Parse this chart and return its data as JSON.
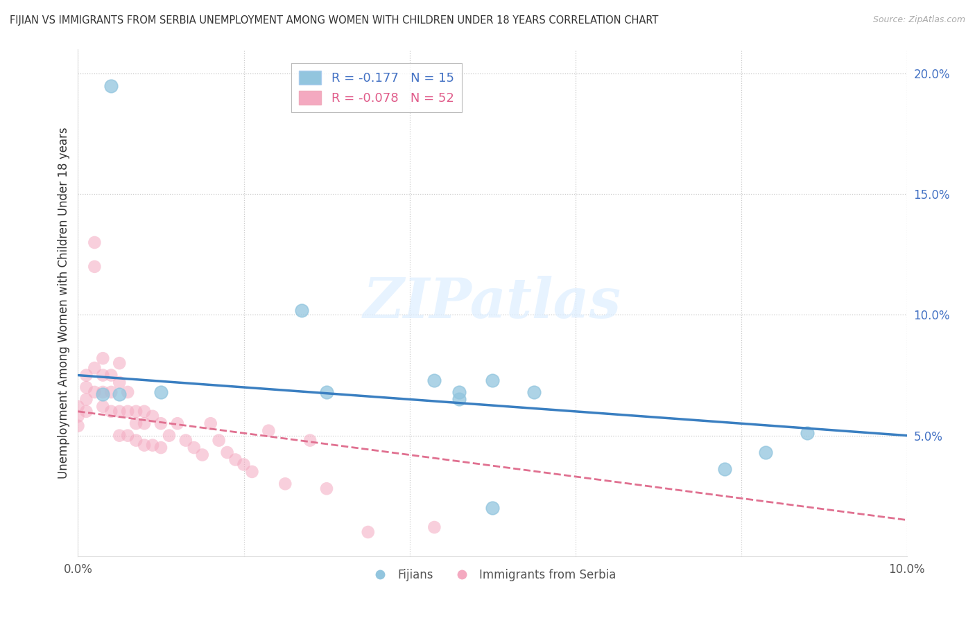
{
  "title": "FIJIAN VS IMMIGRANTS FROM SERBIA UNEMPLOYMENT AMONG WOMEN WITH CHILDREN UNDER 18 YEARS CORRELATION CHART",
  "source": "Source: ZipAtlas.com",
  "ylabel": "Unemployment Among Women with Children Under 18 years",
  "x_min": 0.0,
  "x_max": 0.1,
  "y_min": 0.0,
  "y_max": 0.21,
  "x_tick_positions": [
    0.0,
    0.02,
    0.04,
    0.06,
    0.08,
    0.1
  ],
  "x_tick_labels": [
    "0.0%",
    "",
    "",
    "",
    "",
    "10.0%"
  ],
  "y_ticks_right": [
    0.05,
    0.1,
    0.15,
    0.2
  ],
  "y_tick_labels_right": [
    "5.0%",
    "10.0%",
    "15.0%",
    "20.0%"
  ],
  "fijians_R": -0.177,
  "fijians_N": 15,
  "serbia_R": -0.078,
  "serbia_N": 52,
  "fijians_color": "#92c5de",
  "serbia_color": "#f4a9c0",
  "fijians_line_color": "#3a7fc1",
  "serbia_line_color": "#e07090",
  "watermark_text": "ZIPatlas",
  "fijians_x": [
    0.004,
    0.003,
    0.01,
    0.03,
    0.043,
    0.046,
    0.046,
    0.05,
    0.055,
    0.078,
    0.083,
    0.088,
    0.027,
    0.005,
    0.05
  ],
  "fijians_y": [
    0.195,
    0.067,
    0.068,
    0.068,
    0.073,
    0.065,
    0.068,
    0.02,
    0.068,
    0.036,
    0.043,
    0.051,
    0.102,
    0.067,
    0.073
  ],
  "serbia_x": [
    0.0,
    0.0,
    0.0,
    0.001,
    0.001,
    0.001,
    0.001,
    0.002,
    0.002,
    0.002,
    0.002,
    0.003,
    0.003,
    0.003,
    0.003,
    0.004,
    0.004,
    0.004,
    0.005,
    0.005,
    0.005,
    0.005,
    0.006,
    0.006,
    0.006,
    0.007,
    0.007,
    0.007,
    0.008,
    0.008,
    0.008,
    0.009,
    0.009,
    0.01,
    0.01,
    0.011,
    0.012,
    0.013,
    0.014,
    0.015,
    0.016,
    0.017,
    0.018,
    0.019,
    0.02,
    0.021,
    0.023,
    0.025,
    0.028,
    0.03,
    0.035,
    0.043
  ],
  "serbia_y": [
    0.062,
    0.058,
    0.054,
    0.075,
    0.07,
    0.065,
    0.06,
    0.13,
    0.12,
    0.078,
    0.068,
    0.082,
    0.075,
    0.068,
    0.062,
    0.075,
    0.068,
    0.06,
    0.08,
    0.072,
    0.06,
    0.05,
    0.068,
    0.06,
    0.05,
    0.06,
    0.055,
    0.048,
    0.06,
    0.055,
    0.046,
    0.058,
    0.046,
    0.055,
    0.045,
    0.05,
    0.055,
    0.048,
    0.045,
    0.042,
    0.055,
    0.048,
    0.043,
    0.04,
    0.038,
    0.035,
    0.052,
    0.03,
    0.048,
    0.028,
    0.01,
    0.012
  ],
  "fijians_line_x0": 0.0,
  "fijians_line_y0": 0.075,
  "fijians_line_x1": 0.1,
  "fijians_line_y1": 0.05,
  "serbia_line_x0": 0.0,
  "serbia_line_y0": 0.06,
  "serbia_line_x1": 0.1,
  "serbia_line_y1": 0.015
}
